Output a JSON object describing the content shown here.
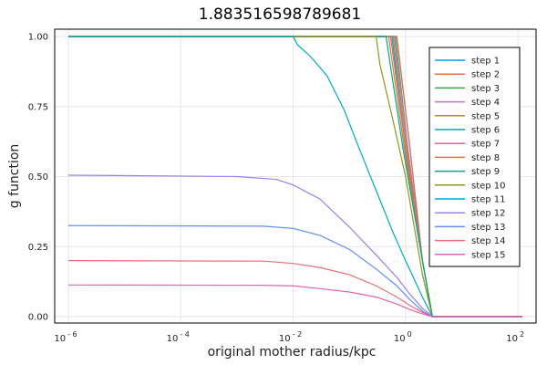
{
  "chart_data": {
    "type": "line",
    "title": "1.883516598789681",
    "xlabel": "original mother radius/kpc",
    "ylabel": "g function",
    "xscale": "log10",
    "xlim": [
      1e-06,
      120
    ],
    "ylim": [
      0,
      1.0
    ],
    "xticks": [
      {
        "base": "10",
        "exp": "- 6",
        "value": 1e-06
      },
      {
        "base": "10",
        "exp": "- 4",
        "value": 0.0001
      },
      {
        "base": "10",
        "exp": "- 2",
        "value": 0.01
      },
      {
        "base": "10",
        "exp": "0",
        "value": 1
      },
      {
        "base": "10",
        "exp": "2",
        "value": 100
      }
    ],
    "yticks": [
      "0.00",
      "0.25",
      "0.50",
      "0.75",
      "1.00"
    ],
    "ytick_values": [
      0,
      0.25,
      0.5,
      0.75,
      1.0
    ],
    "grid": true,
    "legend_position": "top-right",
    "series": [
      {
        "name": "step 1",
        "color": "#009af9",
        "points": [
          [
            1e-06,
            1.0
          ],
          [
            0.7,
            1.0
          ],
          [
            1.2,
            0.6
          ],
          [
            2,
            0.2
          ],
          [
            3,
            0.0
          ],
          [
            120,
            0.0
          ]
        ]
      },
      {
        "name": "step 2",
        "color": "#e26f46",
        "points": [
          [
            1e-06,
            1.0
          ],
          [
            0.7,
            1.0
          ],
          [
            1.2,
            0.6
          ],
          [
            2,
            0.2
          ],
          [
            3,
            0.0
          ],
          [
            120,
            0.0
          ]
        ]
      },
      {
        "name": "step 3",
        "color": "#3da44e",
        "points": [
          [
            1e-06,
            1.0
          ],
          [
            0.66,
            1.0
          ],
          [
            1.1,
            0.6
          ],
          [
            2,
            0.2
          ],
          [
            3,
            0.0
          ],
          [
            120,
            0.0
          ]
        ]
      },
      {
        "name": "step 4",
        "color": "#c271d2",
        "points": [
          [
            1e-06,
            1.0
          ],
          [
            0.63,
            1.0
          ],
          [
            1.1,
            0.6
          ],
          [
            2,
            0.2
          ],
          [
            3,
            0.0
          ],
          [
            120,
            0.0
          ]
        ]
      },
      {
        "name": "step 5",
        "color": "#ac8e18",
        "points": [
          [
            1e-06,
            1.0
          ],
          [
            0.6,
            1.0
          ],
          [
            1.05,
            0.6
          ],
          [
            2,
            0.2
          ],
          [
            3,
            0.0
          ],
          [
            120,
            0.0
          ]
        ]
      },
      {
        "name": "step 6",
        "color": "#00a9ad",
        "points": [
          [
            1e-06,
            1.0
          ],
          [
            0.57,
            1.0
          ],
          [
            1.0,
            0.6
          ],
          [
            2,
            0.2
          ],
          [
            3,
            0.0
          ],
          [
            120,
            0.0
          ]
        ]
      },
      {
        "name": "step 7",
        "color": "#ed5e93",
        "points": [
          [
            1e-06,
            1.0
          ],
          [
            0.54,
            1.0
          ],
          [
            1.0,
            0.6
          ],
          [
            2,
            0.2
          ],
          [
            3,
            0.0
          ],
          [
            120,
            0.0
          ]
        ]
      },
      {
        "name": "step 8",
        "color": "#c68225",
        "points": [
          [
            1e-06,
            1.0
          ],
          [
            0.5,
            1.0
          ],
          [
            0.95,
            0.6
          ],
          [
            2,
            0.2
          ],
          [
            3,
            0.0
          ],
          [
            120,
            0.0
          ]
        ]
      },
      {
        "name": "step 9",
        "color": "#00a98d",
        "points": [
          [
            1e-06,
            1.0
          ],
          [
            0.45,
            1.0
          ],
          [
            0.9,
            0.6
          ],
          [
            2,
            0.2
          ],
          [
            3,
            0.0
          ],
          [
            120,
            0.0
          ]
        ]
      },
      {
        "name": "step 10",
        "color": "#8e971d",
        "points": [
          [
            1e-06,
            1.0
          ],
          [
            0.3,
            1.0
          ],
          [
            0.35,
            0.9
          ],
          [
            0.6,
            0.7
          ],
          [
            1.0,
            0.5
          ],
          [
            2,
            0.15
          ],
          [
            3,
            0.0
          ],
          [
            120,
            0.0
          ]
        ]
      },
      {
        "name": "step 11",
        "color": "#00a8cb",
        "points": [
          [
            1e-06,
            1.0
          ],
          [
            0.01,
            1.0
          ],
          [
            0.012,
            0.97
          ],
          [
            0.02,
            0.93
          ],
          [
            0.04,
            0.86
          ],
          [
            0.08,
            0.74
          ],
          [
            0.15,
            0.6
          ],
          [
            0.3,
            0.45
          ],
          [
            0.6,
            0.3
          ],
          [
            1.0,
            0.2
          ],
          [
            2,
            0.07
          ],
          [
            3,
            0.0
          ],
          [
            120,
            0.0
          ]
        ]
      },
      {
        "name": "step 12",
        "color": "#9b7fe9",
        "points": [
          [
            1e-06,
            0.505
          ],
          [
            0.001,
            0.5
          ],
          [
            0.005,
            0.49
          ],
          [
            0.01,
            0.47
          ],
          [
            0.03,
            0.42
          ],
          [
            0.1,
            0.32
          ],
          [
            0.3,
            0.22
          ],
          [
            0.7,
            0.14
          ],
          [
            1.2,
            0.08
          ],
          [
            2,
            0.03
          ],
          [
            3,
            0.0
          ],
          [
            120,
            0.0
          ]
        ]
      },
      {
        "name": "step 13",
        "color": "#618df6",
        "points": [
          [
            1e-06,
            0.325
          ],
          [
            0.003,
            0.323
          ],
          [
            0.01,
            0.315
          ],
          [
            0.03,
            0.29
          ],
          [
            0.1,
            0.24
          ],
          [
            0.3,
            0.17
          ],
          [
            0.7,
            0.11
          ],
          [
            1.2,
            0.06
          ],
          [
            2,
            0.02
          ],
          [
            3,
            0.0
          ],
          [
            120,
            0.0
          ]
        ]
      },
      {
        "name": "step 14",
        "color": "#f16c7a",
        "points": [
          [
            1e-06,
            0.2
          ],
          [
            0.003,
            0.198
          ],
          [
            0.01,
            0.19
          ],
          [
            0.03,
            0.175
          ],
          [
            0.1,
            0.15
          ],
          [
            0.3,
            0.11
          ],
          [
            0.7,
            0.07
          ],
          [
            1.2,
            0.04
          ],
          [
            2,
            0.015
          ],
          [
            3,
            0.0
          ],
          [
            120,
            0.0
          ]
        ]
      },
      {
        "name": "step 15",
        "color": "#dd64b5",
        "points": [
          [
            1e-06,
            0.113
          ],
          [
            0.003,
            0.112
          ],
          [
            0.01,
            0.11
          ],
          [
            0.03,
            0.1
          ],
          [
            0.1,
            0.088
          ],
          [
            0.3,
            0.07
          ],
          [
            0.7,
            0.045
          ],
          [
            1.2,
            0.025
          ],
          [
            2,
            0.01
          ],
          [
            3,
            0.0
          ],
          [
            120,
            0.0
          ]
        ]
      }
    ]
  }
}
